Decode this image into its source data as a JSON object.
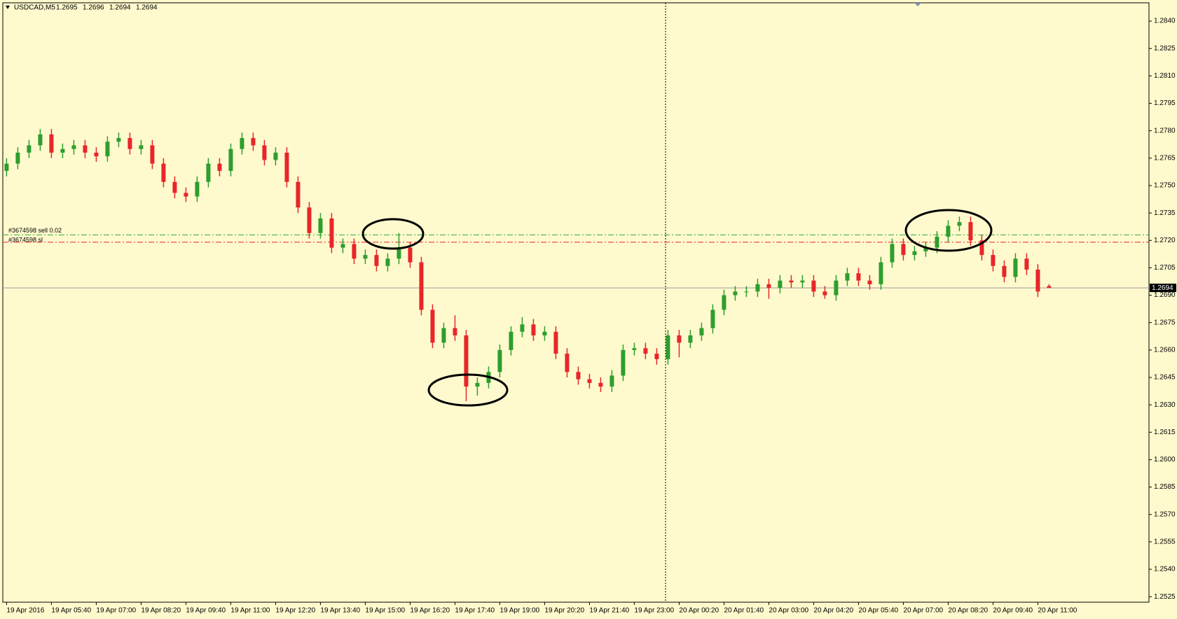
{
  "chart_data": {
    "type": "candlestick",
    "title": "USDCAD,M5",
    "header_values": [
      1.2695,
      1.2696,
      1.2694,
      1.2694
    ],
    "categories": [
      "19 Apr 2016",
      null,
      null,
      null,
      "19 Apr 05:40",
      null,
      null,
      null,
      "19 Apr 07:00",
      null,
      null,
      null,
      "19 Apr 08:20",
      null,
      null,
      null,
      "19 Apr 09:40",
      null,
      null,
      null,
      "19 Apr 11:00",
      null,
      null,
      null,
      "19 Apr 12:20",
      null,
      null,
      null,
      "19 Apr 13:40",
      null,
      null,
      null,
      "19 Apr 15:00",
      null,
      null,
      null,
      "19 Apr 16:20",
      null,
      null,
      null,
      "19 Apr 17:40",
      null,
      null,
      null,
      "19 Apr 19:00",
      null,
      null,
      null,
      "19 Apr 20:20",
      null,
      null,
      null,
      "19 Apr 21:40",
      null,
      null,
      null,
      "19 Apr 23:00",
      null,
      null,
      null,
      "20 Apr 00:20",
      null,
      null,
      null,
      "20 Apr 01:40",
      null,
      null,
      null,
      "20 Apr 03:00",
      null,
      null,
      null,
      "20 Apr 04:20",
      null,
      null,
      null,
      "20 Apr 05:40",
      null,
      null,
      null,
      "20 Apr 07:00",
      null,
      null,
      null,
      "20 Apr 08:20",
      null,
      null,
      null,
      "20 Apr 09:40",
      null,
      null,
      null,
      "20 Apr 11:00",
      null
    ],
    "open": [
      1.2758,
      1.2762,
      1.2768,
      1.2772,
      1.2778,
      1.2768,
      1.277,
      1.2772,
      1.2768,
      1.2766,
      1.2774,
      1.2776,
      1.277,
      1.2772,
      1.2762,
      1.2752,
      1.2746,
      1.2744,
      1.2752,
      1.2762,
      1.2758,
      1.277,
      1.2776,
      1.2772,
      1.2764,
      1.2768,
      1.2752,
      1.2738,
      1.2724,
      1.2732,
      1.2716,
      1.2718,
      1.271,
      1.2712,
      1.2706,
      1.271,
      1.2716,
      1.2708,
      1.2682,
      1.2664,
      1.2672,
      1.2668,
      1.264,
      1.2642,
      1.2648,
      1.266,
      1.267,
      1.2674,
      1.2668,
      1.267,
      1.2658,
      1.2648,
      1.2644,
      1.2642,
      1.264,
      1.2646,
      1.266,
      1.2661,
      1.2658,
      1.2655,
      1.2668,
      1.2664,
      1.2668,
      1.2672,
      1.2682,
      1.269,
      1.2692,
      1.2692,
      1.2696,
      1.2694,
      1.2698,
      1.2697,
      1.2698,
      1.2692,
      1.269,
      1.2698,
      1.2702,
      1.2698,
      1.2696,
      1.2708,
      1.2718,
      1.2712,
      1.2714,
      1.2716,
      1.2722,
      1.2728,
      1.273,
      1.272,
      1.2712,
      1.2706,
      1.27,
      1.271,
      1.2704,
      1.2695
    ],
    "high": [
      1.2765,
      1.2771,
      1.2775,
      1.2781,
      1.2781,
      1.2773,
      1.2775,
      1.2775,
      1.2771,
      1.2777,
      1.2779,
      1.2779,
      1.2775,
      1.2775,
      1.2765,
      1.2755,
      1.2749,
      1.2755,
      1.2765,
      1.2765,
      1.2773,
      1.2779,
      1.2779,
      1.2775,
      1.2771,
      1.2771,
      1.2755,
      1.2741,
      1.2735,
      1.2735,
      1.2721,
      1.2721,
      1.2715,
      1.2715,
      1.2713,
      1.2724,
      1.2719,
      1.2711,
      1.2685,
      1.2675,
      1.2679,
      1.2671,
      1.2645,
      1.2651,
      1.2663,
      1.2673,
      1.2678,
      1.2677,
      1.2673,
      1.2673,
      1.2661,
      1.2651,
      1.2647,
      1.2645,
      1.2649,
      1.2663,
      1.2664,
      1.2664,
      1.2661,
      1.2671,
      1.2671,
      1.2671,
      1.2675,
      1.2685,
      1.2693,
      1.2695,
      1.2695,
      1.2699,
      1.2699,
      1.2701,
      1.2701,
      1.2701,
      1.2701,
      1.2695,
      1.2701,
      1.2705,
      1.2705,
      1.2701,
      1.2711,
      1.2721,
      1.2721,
      1.2717,
      1.2719,
      1.2725,
      1.2731,
      1.2733,
      1.2733,
      1.2723,
      1.2715,
      1.2709,
      1.2713,
      1.2713,
      1.2707,
      1.2696
    ],
    "low": [
      1.2755,
      1.2759,
      1.2765,
      1.2769,
      1.2765,
      1.2765,
      1.2767,
      1.2765,
      1.2763,
      1.2763,
      1.2771,
      1.2767,
      1.2767,
      1.2759,
      1.2749,
      1.2743,
      1.2741,
      1.2741,
      1.2749,
      1.2755,
      1.2755,
      1.2767,
      1.2769,
      1.2761,
      1.2761,
      1.2749,
      1.2735,
      1.2721,
      1.2721,
      1.2713,
      1.2713,
      1.2707,
      1.2707,
      1.2703,
      1.2703,
      1.2707,
      1.2705,
      1.2679,
      1.2661,
      1.2661,
      1.2665,
      1.2632,
      1.2635,
      1.2639,
      1.2645,
      1.2657,
      1.2667,
      1.2665,
      1.2665,
      1.2655,
      1.2645,
      1.2641,
      1.2639,
      1.2637,
      1.2637,
      1.2643,
      1.2657,
      1.2655,
      1.2652,
      1.2652,
      1.2656,
      1.2661,
      1.2665,
      1.2669,
      1.2679,
      1.2687,
      1.2689,
      1.2689,
      1.2688,
      1.2691,
      1.2694,
      1.2694,
      1.2689,
      1.2688,
      1.2687,
      1.2695,
      1.2695,
      1.2693,
      1.2693,
      1.2705,
      1.2709,
      1.2709,
      1.2711,
      1.2713,
      1.2719,
      1.2725,
      1.2717,
      1.2709,
      1.2703,
      1.2697,
      1.2697,
      1.2701,
      1.2689,
      1.2694
    ],
    "close": [
      1.2762,
      1.2768,
      1.2772,
      1.2778,
      1.2768,
      1.277,
      1.2772,
      1.2768,
      1.2766,
      1.2774,
      1.2776,
      1.277,
      1.2772,
      1.2762,
      1.2752,
      1.2746,
      1.2744,
      1.2752,
      1.2762,
      1.2758,
      1.277,
      1.2776,
      1.2772,
      1.2764,
      1.2768,
      1.2752,
      1.2738,
      1.2724,
      1.2732,
      1.2716,
      1.2718,
      1.271,
      1.2712,
      1.2706,
      1.271,
      1.2716,
      1.2708,
      1.2682,
      1.2664,
      1.2672,
      1.2668,
      1.264,
      1.2642,
      1.2648,
      1.266,
      1.267,
      1.2674,
      1.2668,
      1.267,
      1.2658,
      1.2648,
      1.2644,
      1.2642,
      1.264,
      1.2646,
      1.266,
      1.2661,
      1.2658,
      1.2655,
      1.2668,
      1.2664,
      1.2668,
      1.2672,
      1.2682,
      1.269,
      1.2692,
      1.2692,
      1.2696,
      1.2694,
      1.2698,
      1.2697,
      1.2698,
      1.2692,
      1.269,
      1.2698,
      1.2702,
      1.2698,
      1.2696,
      1.2708,
      1.2718,
      1.2712,
      1.2714,
      1.2716,
      1.2722,
      1.2728,
      1.273,
      1.272,
      1.2712,
      1.2706,
      1.27,
      1.271,
      1.2704,
      1.2692,
      1.2694
    ],
    "up_color": "#2e9e2e",
    "down_color": "#e8262a",
    "ylim": [
      1.2522,
      1.285
    ],
    "yticks": [
      {
        "value": 1.284,
        "label": "1.2840"
      },
      1.2825,
      {
        "value": 1.281,
        "label": "1.2810"
      },
      1.2795,
      {
        "value": 1.278,
        "label": "1.2780"
      },
      1.2765,
      {
        "value": 1.275,
        "label": "1.2750"
      },
      1.2735,
      {
        "value": 1.272,
        "label": "1.2720"
      },
      1.2705,
      {
        "value": 1.269,
        "label": "1.2690"
      },
      1.2675,
      {
        "value": 1.266,
        "label": "1.2660"
      },
      1.2645,
      {
        "value": 1.263,
        "label": "1.2630"
      },
      1.2615,
      {
        "value": 1.26,
        "label": "1.2600"
      },
      1.2585,
      {
        "value": 1.257,
        "label": "1.2570"
      },
      1.2555,
      {
        "value": 1.254,
        "label": "1.2540"
      },
      1.2525
    ],
    "current_price": 1.2694,
    "levels": [
      {
        "label": "#3674598 sell 0.02",
        "value": 1.2723,
        "color": "#3aa83a"
      },
      {
        "label": "#3674598 sl",
        "value": 1.2719,
        "color": "#e8262a"
      }
    ]
  }
}
